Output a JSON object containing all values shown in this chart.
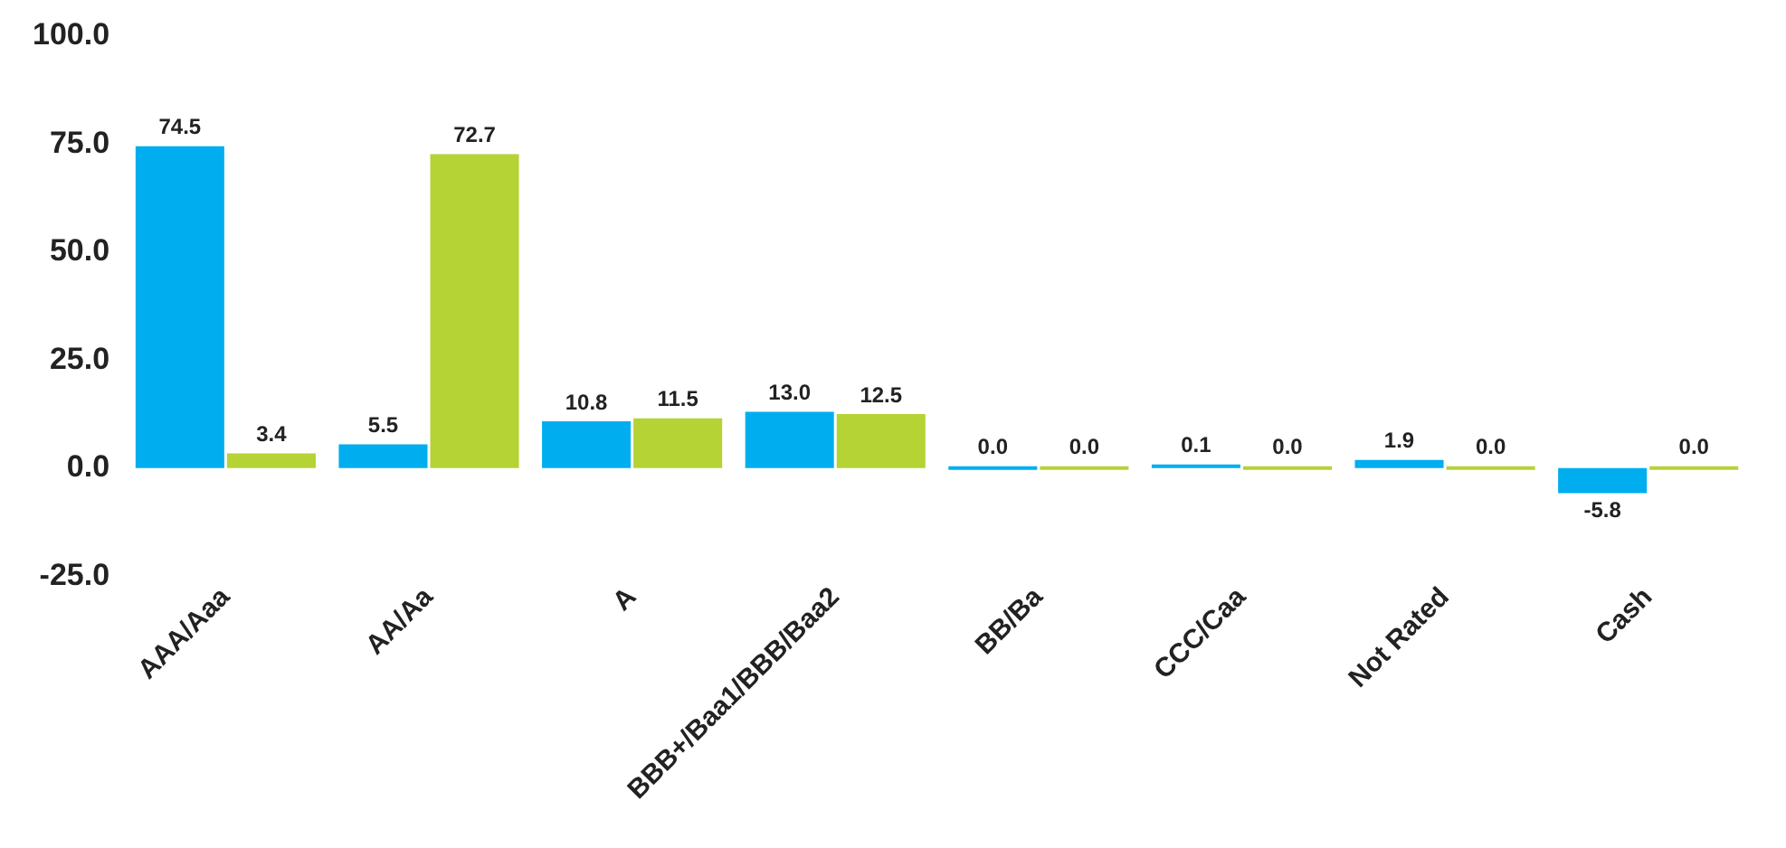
{
  "chart_data": {
    "type": "bar",
    "categories": [
      "AAA/Aaa",
      "AA/Aa",
      "A",
      "BBB+/Baa1/BBB/Baa2",
      "BB/Ba",
      "CCC/Caa",
      "Not Rated",
      "Cash"
    ],
    "series": [
      {
        "color": "#00aeef",
        "values": [
          74.5,
          5.5,
          10.8,
          13.0,
          0.0,
          0.1,
          1.9,
          -5.8
        ],
        "value_labels": [
          "74.5",
          "5.5",
          "10.8",
          "13.0",
          "0.0",
          "0.1",
          "1.9",
          "-5.8"
        ]
      },
      {
        "color": "#b5d334",
        "values": [
          3.4,
          72.7,
          11.5,
          12.5,
          0.0,
          0.0,
          0.0,
          0.0
        ],
        "value_labels": [
          "3.4",
          "72.7",
          "11.5",
          "12.5",
          "0.0",
          "0.0",
          "0.0",
          "0.0"
        ]
      }
    ],
    "ylim": [
      -25,
      100
    ],
    "yticks": [
      {
        "value": -25,
        "label": "-25.0"
      },
      {
        "value": 0,
        "label": "0.0"
      },
      {
        "value": 25,
        "label": "25.0"
      },
      {
        "value": 50,
        "label": "50.0"
      },
      {
        "value": 75,
        "label": "75.0"
      },
      {
        "value": 100,
        "label": "100.0"
      }
    ],
    "grid": false,
    "legend": false
  }
}
